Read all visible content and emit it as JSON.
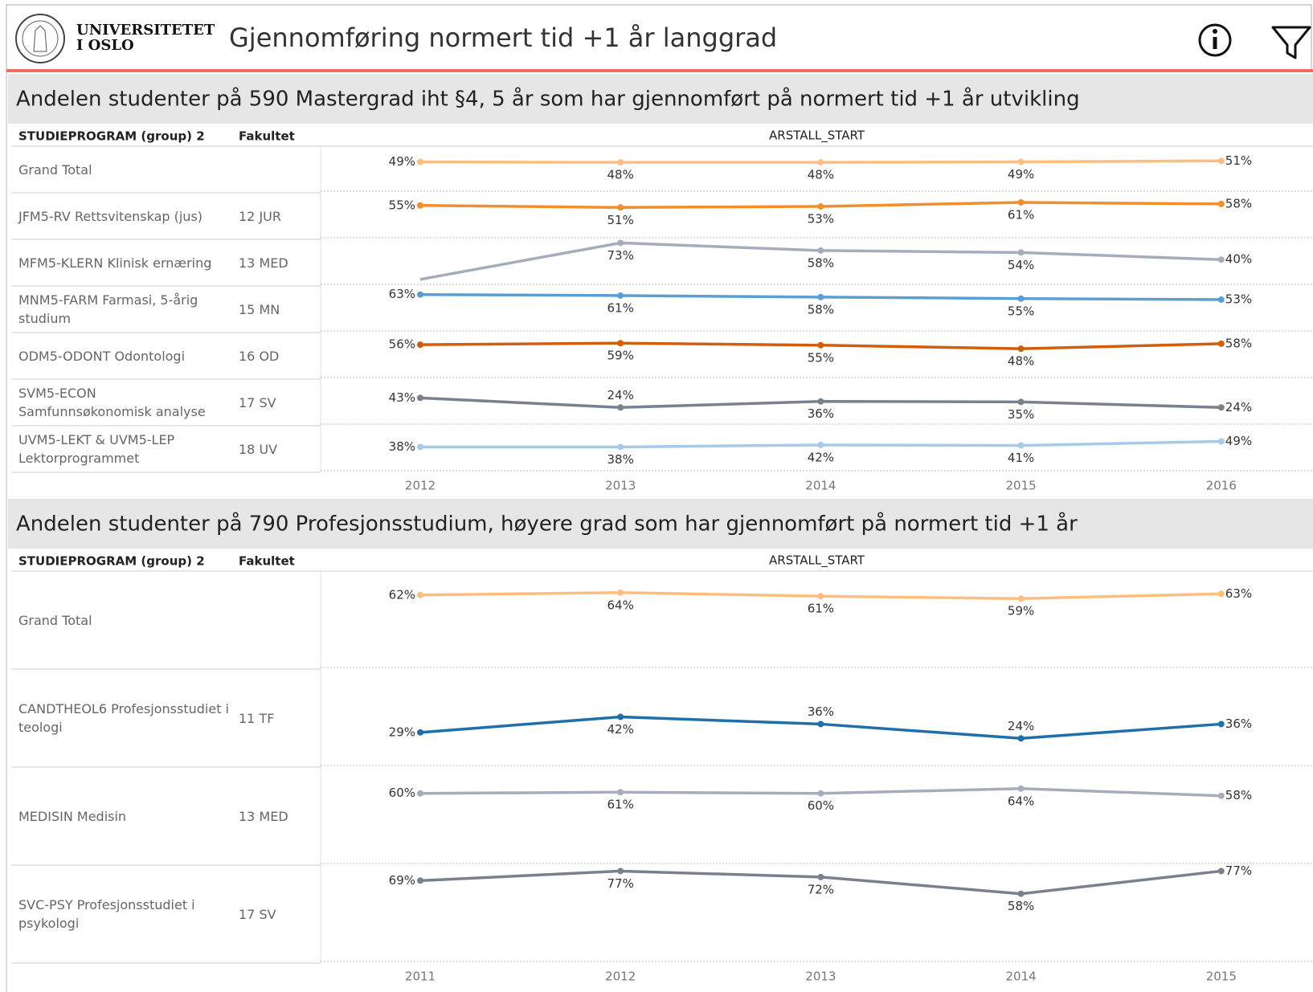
{
  "header": {
    "logo": [
      "UNIVERSITETET",
      "I OSLO"
    ],
    "title": "Gjennomføring normert tid +1 år langgrad"
  },
  "chart_data": [
    {
      "type": "line",
      "title": "Andelen studenter på 590 Mastergrad iht §4, 5 år som har gjennomført på normert tid +1 år utvikling",
      "columns": [
        "STUDIEPROGRAM (group) 2",
        "Fakultet"
      ],
      "xlabel": "ARSTALL_START",
      "categories": [
        "2012",
        "2013",
        "2014",
        "2015",
        "2016"
      ],
      "ylim": [
        -12,
        80
      ],
      "series": [
        {
          "name": "Grand Total",
          "color": "#ffbe7d",
          "values": [
            49,
            48,
            48,
            49,
            51
          ],
          "value_labels": [
            "49%",
            "48%",
            "48%",
            "49%",
            "51%"
          ]
        },
        {
          "name": "JFM5-RV Rettsvitenskap (jus)",
          "faculty": "12 JUR",
          "color": "#f28e2b",
          "values": [
            55,
            51,
            53,
            61,
            58
          ],
          "value_labels": [
            "55%",
            "51%",
            "53%",
            "61%",
            "58%"
          ]
        },
        {
          "name": "MFM5-KLERN Klinisk ernæring",
          "faculty": "13 MED",
          "color": "#a5acbb",
          "values": [
            1,
            73,
            58,
            54,
            40
          ],
          "value_labels": [
            null,
            "73%",
            "58%",
            "54%",
            "40%"
          ]
        },
        {
          "name": "MNM5-FARM Farmasi, 5-årig studium",
          "faculty": "15 MN",
          "color": "#5a9fd4",
          "values": [
            63,
            61,
            58,
            55,
            53
          ],
          "value_labels": [
            "63%",
            "61%",
            "58%",
            "55%",
            "53%"
          ]
        },
        {
          "name": "ODM5-ODONT Odontologi",
          "faculty": "16 OD",
          "color": "#d15d0d",
          "values": [
            56,
            59,
            55,
            48,
            58
          ],
          "value_labels": [
            "56%",
            "59%",
            "55%",
            "48%",
            "58%"
          ]
        },
        {
          "name": "SVM5-ECON Samfunnsøkonomisk analyse",
          "faculty": "17 SV",
          "color": "#79818e",
          "values": [
            43,
            24,
            36,
            35,
            24
          ],
          "value_labels": [
            "43%",
            "24%",
            "36%",
            "35%",
            "24%"
          ]
        },
        {
          "name": "UVM5-LEKT & UVM5-LEP Lektorprogrammet",
          "faculty": "18 UV",
          "color": "#a6cbe8",
          "values": [
            38,
            38,
            42,
            41,
            49
          ],
          "value_labels": [
            "38%",
            "38%",
            "42%",
            "41%",
            "49%"
          ]
        }
      ]
    },
    {
      "type": "line",
      "title": "Andelen studenter på 790 Profesjonsstudium, høyere grad som har gjennomført på normert tid +1 år",
      "columns": [
        "STUDIEPROGRAM (group) 2",
        "Fakultet"
      ],
      "xlabel": "ARSTALL_START",
      "categories": [
        "2011",
        "2012",
        "2013",
        "2014",
        "2015"
      ],
      "ylim": [
        0,
        82
      ],
      "series": [
        {
          "name": "Grand Total",
          "color": "#ffbe7d",
          "values": [
            62,
            64,
            61,
            59,
            63
          ],
          "value_labels": [
            "62%",
            "64%",
            "61%",
            "59%",
            "63%"
          ]
        },
        {
          "name": "CANDTHEOL6 Profesjonsstudiet i teologi",
          "faculty": "11 TF",
          "color": "#1f6faa",
          "values": [
            29,
            42,
            36,
            24,
            36
          ],
          "value_labels": [
            "29%",
            "42%",
            "36%",
            "24%",
            "36%"
          ]
        },
        {
          "name": "MEDISIN Medisin",
          "faculty": "13 MED",
          "color": "#a5acbb",
          "values": [
            60,
            61,
            60,
            64,
            58
          ],
          "value_labels": [
            "60%",
            "61%",
            "60%",
            "64%",
            "58%"
          ]
        },
        {
          "name": "SVC-PSY Profesjonsstudiet i psykologi",
          "faculty": "17 SV",
          "color": "#79818e",
          "values": [
            69,
            77,
            72,
            58,
            77
          ],
          "value_labels": [
            "69%",
            "77%",
            "72%",
            "58%",
            "77%"
          ]
        }
      ]
    }
  ]
}
